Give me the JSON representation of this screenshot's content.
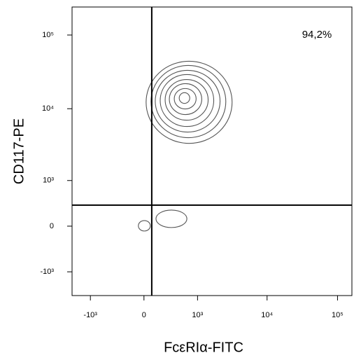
{
  "chart_data": {
    "type": "contour",
    "xlabel": "FcεRIα-FITC",
    "ylabel": "CD117-PE",
    "annotation": "94,2%",
    "scale": "biexponential",
    "xlim": [
      -1860,
      160000
    ],
    "ylim": [
      -2200,
      240000
    ],
    "xticks": [
      {
        "value": -1000,
        "label": "-10³"
      },
      0,
      {
        "value": 1000,
        "label": "10³"
      },
      {
        "value": 10000,
        "label": "10⁴"
      },
      {
        "value": 100000,
        "label": "10⁵"
      }
    ],
    "yticks": [
      {
        "value": -1000,
        "label": "-10³"
      },
      0,
      {
        "value": 1000,
        "label": "10³"
      },
      {
        "value": 10000,
        "label": "10⁴"
      },
      {
        "value": 100000,
        "label": "10⁵"
      }
    ],
    "gates": {
      "x": 92,
      "y": 360
    },
    "color": "#555555",
    "contours": [
      {
        "x": [
          25,
          3180
        ],
        "y": [
          3370,
          44100
        ]
      },
      {
        "x": [
          83,
          2585
        ],
        "y": [
          4030,
          38700
        ]
      },
      {
        "x": [
          135,
          2137
        ],
        "y": [
          4810,
          33200
        ]
      },
      {
        "x": [
          199,
          1733
        ],
        "y": [
          5730,
          29100
        ]
      },
      {
        "x": [
          268,
          1436
        ],
        "y": [
          6980,
          24900
        ]
      },
      {
        "x": [
          332,
          1156
        ],
        "y": [
          8330,
          21900
        ]
      },
      {
        "x": [
          415,
          952
        ],
        "y": [
          9920,
          18800
        ]
      },
      {
        "x": [
          510,
          759
        ],
        "y": [
          11800,
          16500
        ]
      },
      {
        "x": [
          144,
          684
        ],
        "y": [
          -22,
          268
        ]
      },
      {
        "x": [
          -66,
          75
        ],
        "y": [
          -78,
          90
        ]
      }
    ]
  }
}
